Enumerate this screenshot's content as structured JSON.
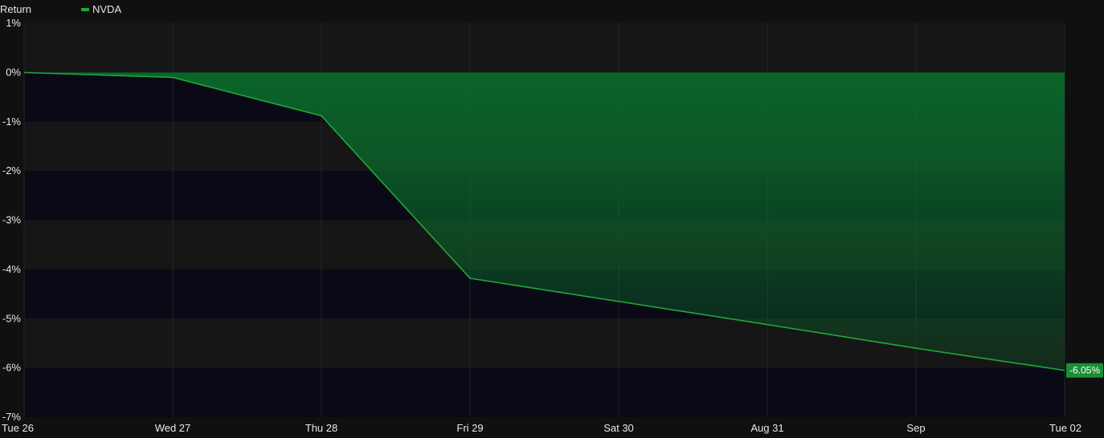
{
  "legend": {
    "title": "Return",
    "series_label": "NVDA"
  },
  "colors": {
    "background": "#101010",
    "band_dark": "#0a0a17",
    "band_light": "#161616",
    "line": "#1fa83a",
    "fill": "#0d6b2c",
    "end_label_bg": "#1a8f35"
  },
  "end_label": "-6.05%",
  "chart_data": {
    "type": "area",
    "x": [
      "Tue 26",
      "Wed 27",
      "Thu 28",
      "Fri 29",
      "Sat 30",
      "Aug 31",
      "Sep",
      "Tue 02"
    ],
    "series": [
      {
        "name": "NVDA",
        "values": [
          0.0,
          -0.1,
          -0.88,
          -4.18,
          -4.65,
          -5.12,
          -5.6,
          -6.05
        ]
      }
    ],
    "ylabel": "Return",
    "ylim": [
      -7,
      1
    ],
    "yticks": [
      1,
      0,
      -1,
      -2,
      -3,
      -4,
      -5,
      -6,
      -7
    ],
    "ytick_labels": [
      "1%",
      "0%",
      "-1%",
      "-2%",
      "-3%",
      "-4%",
      "-5%",
      "-6%",
      "-7%"
    ],
    "xtick_labels": [
      "Tue 26",
      "Wed 27",
      "Thu 28",
      "Fri 29",
      "Sat 30",
      "Aug 31",
      "Sep",
      "Tue 02"
    ],
    "grid": true,
    "legend_position": "top-left"
  }
}
